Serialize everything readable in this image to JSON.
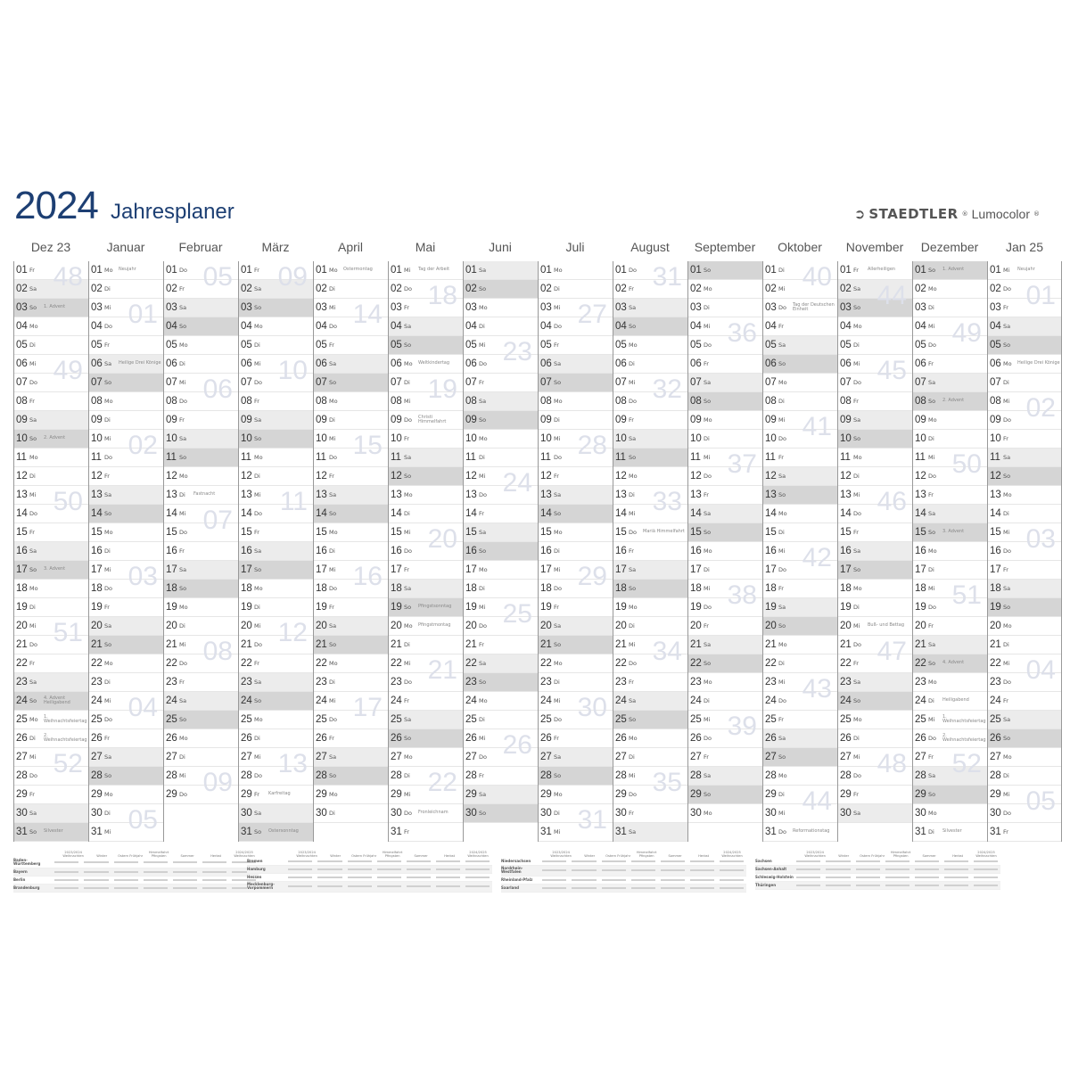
{
  "header": {
    "year": "2024",
    "title": "Jahresplaner",
    "brand": "STAEDTLER",
    "product": "Lumocolor"
  },
  "weekdays": [
    "So",
    "Mo",
    "Di",
    "Mi",
    "Do",
    "Fr",
    "Sa"
  ],
  "months": [
    {
      "name": "Dez 23",
      "year": 2023,
      "month": 12,
      "holidays": {
        "3": "1. Advent",
        "10": "2. Advent",
        "17": "3. Advent",
        "24": "4. Advent Heiligabend",
        "25": "1. Weihnachtsfeiertag",
        "26": "2. Weihnachtsfeiertag",
        "31": "Silvester"
      }
    },
    {
      "name": "Januar",
      "year": 2024,
      "month": 1,
      "holidays": {
        "1": "Neujahr",
        "6": "Heilige Drei Könige"
      }
    },
    {
      "name": "Februar",
      "year": 2024,
      "month": 2,
      "holidays": {
        "13": "Fastnacht"
      }
    },
    {
      "name": "März",
      "year": 2024,
      "month": 3,
      "holidays": {
        "29": "Karfreitag",
        "31": "Ostersonntag"
      }
    },
    {
      "name": "April",
      "year": 2024,
      "month": 4,
      "holidays": {
        "1": "Ostermontag"
      }
    },
    {
      "name": "Mai",
      "year": 2024,
      "month": 5,
      "holidays": {
        "1": "Tag der Arbeit",
        "6": "Weltkindertag",
        "9": "Christi Himmelfahrt",
        "19": "Pfingstsonntag",
        "20": "Pfingstmontag",
        "30": "Fronleichnam"
      }
    },
    {
      "name": "Juni",
      "year": 2024,
      "month": 6,
      "holidays": {}
    },
    {
      "name": "Juli",
      "year": 2024,
      "month": 7,
      "holidays": {}
    },
    {
      "name": "August",
      "year": 2024,
      "month": 8,
      "holidays": {
        "15": "Mariä Himmelfahrt"
      }
    },
    {
      "name": "September",
      "year": 2024,
      "month": 9,
      "holidays": {}
    },
    {
      "name": "Oktober",
      "year": 2024,
      "month": 10,
      "holidays": {
        "3": "Tag der Deutschen Einheit",
        "31": "Reformationstag"
      }
    },
    {
      "name": "November",
      "year": 2024,
      "month": 11,
      "holidays": {
        "1": "Allerheiligen",
        "20": "Buß- und Bettag"
      }
    },
    {
      "name": "Dezember",
      "year": 2024,
      "month": 12,
      "holidays": {
        "1": "1. Advent",
        "8": "2. Advent",
        "15": "3. Advent",
        "22": "4. Advent",
        "24": "Heiligabend",
        "25": "1. Weihnachtsfeiertag",
        "26": "2. Weihnachtsfeiertag",
        "31": "Silvester"
      }
    },
    {
      "name": "Jan 25",
      "year": 2025,
      "month": 1,
      "holidays": {
        "1": "Neujahr",
        "6": "Heilige Drei Könige"
      }
    }
  ],
  "colors": {
    "title": "#1d3f73",
    "saturday": "#ececec",
    "sunday": "#d5d5d5",
    "week_number": "#dde0ea"
  },
  "school_holidays": {
    "columns": [
      "2023/2024 Weihnachten",
      "Winter",
      "Ostern Frühjahr",
      "Himmelfahrt Pfingsten",
      "Sommer",
      "Herbst",
      "2024/2025 Weihnachten"
    ],
    "blocks": [
      [
        "Baden-Württemberg",
        "Bayern",
        "Berlin",
        "Brandenburg"
      ],
      [
        "Bremen",
        "Hamburg",
        "Hessen",
        "Mecklenburg-Vorpommern"
      ],
      [
        "Niedersachsen",
        "Nordrhein-Westfalen",
        "Rheinland-Pfalz",
        "Saarland"
      ],
      [
        "Sachsen",
        "Sachsen-Anhalt",
        "Schleswig-Holstein",
        "Thüringen"
      ]
    ]
  }
}
